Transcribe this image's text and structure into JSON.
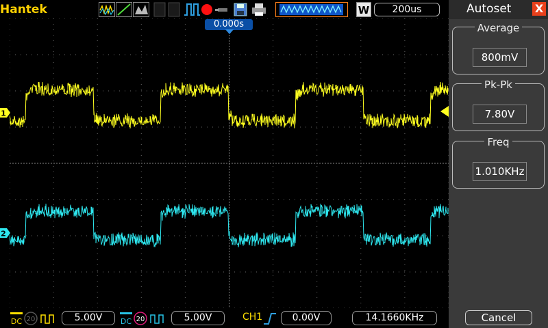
{
  "header": {
    "brand": "Hantek",
    "timebase": "200us"
  },
  "screen": {
    "trigger_time": "0.000s",
    "ch1_marker": "1",
    "ch2_marker": "2"
  },
  "side": {
    "title": "Autoset",
    "close_label": "X",
    "measurements": [
      {
        "label": "Average",
        "value": "800mV"
      },
      {
        "label": "Pk-Pk",
        "value": "7.80V"
      },
      {
        "label": "Freq",
        "value": "1.010KHz"
      }
    ],
    "cancel_label": "Cancel"
  },
  "footer": {
    "ch1_coupling": "DC",
    "ch1_bw": "20",
    "ch1_scale": "5.00V",
    "ch2_coupling": "DC",
    "ch2_bw": "20",
    "ch2_scale": "5.00V",
    "trigger_source": "CH1",
    "trigger_level": "0.00V",
    "frequency_readout": "14.1660KHz",
    "run_mode": "W"
  },
  "colors": {
    "ch1": "#ffff20",
    "ch2": "#2ee6ee",
    "brand": "#ffd200",
    "accent": "#0a4fa6",
    "side_bg": "#3a3a3a"
  }
}
